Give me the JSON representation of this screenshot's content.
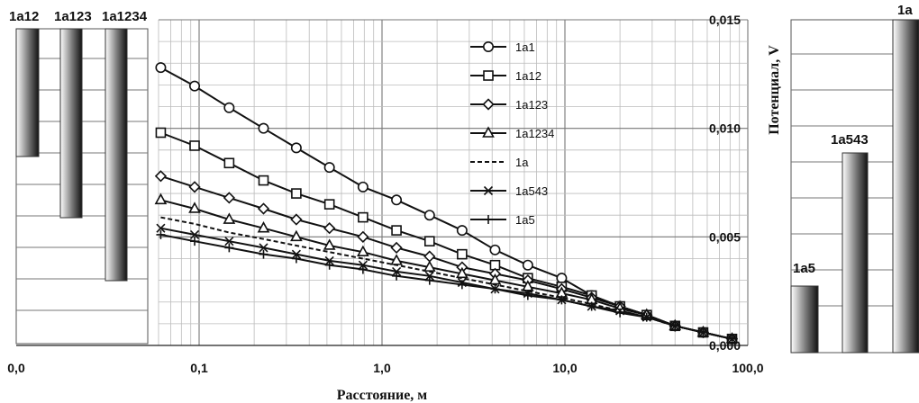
{
  "chart_data": {
    "type": "line",
    "xlabel": "Расстояние, м",
    "ylabel": "Потенциал, V",
    "x_scale": "log",
    "xlim": [
      0.01,
      100
    ],
    "ylim": [
      0,
      0.015
    ],
    "x_tick_labels": [
      "0,0",
      "0,1",
      "1,0",
      "10,0",
      "100,0"
    ],
    "y_tick_labels": [
      "0,000",
      "0,005",
      "0,010",
      "0,015"
    ],
    "grid": true,
    "legend_position": "top-right inside plot",
    "x": [
      0.0617,
      0.0945,
      0.146,
      0.225,
      0.34,
      0.516,
      0.787,
      1.2,
      1.82,
      2.74,
      4.15,
      6.27,
      9.6,
      14.0,
      20.0,
      28.0,
      40.0,
      57.0,
      82.0
    ],
    "series": [
      {
        "name": "1a1",
        "marker": "circle",
        "values": [
          0.0128,
          0.01195,
          0.01095,
          0.01,
          0.0091,
          0.0082,
          0.0073,
          0.0067,
          0.006,
          0.0053,
          0.0044,
          0.0037,
          0.0031,
          0.0023,
          0.0018,
          0.0014,
          0.0009,
          0.0006,
          0.0003
        ]
      },
      {
        "name": "1a12",
        "marker": "square",
        "values": [
          0.0098,
          0.0092,
          0.0084,
          0.0076,
          0.007,
          0.0065,
          0.0059,
          0.0053,
          0.0048,
          0.0042,
          0.0037,
          0.0031,
          0.0027,
          0.0023,
          0.0018,
          0.0014,
          0.0009,
          0.0006,
          0.0003
        ]
      },
      {
        "name": "1a123",
        "marker": "diamond",
        "values": [
          0.0078,
          0.0073,
          0.0068,
          0.0063,
          0.0058,
          0.0054,
          0.005,
          0.0045,
          0.0041,
          0.0036,
          0.0033,
          0.003,
          0.0026,
          0.0022,
          0.0018,
          0.0014,
          0.0009,
          0.0006,
          0.0003
        ]
      },
      {
        "name": "1a1234",
        "marker": "triangle",
        "values": [
          0.0067,
          0.0063,
          0.0058,
          0.0054,
          0.005,
          0.0046,
          0.0043,
          0.0039,
          0.0036,
          0.0033,
          0.003,
          0.0027,
          0.0024,
          0.0021,
          0.0017,
          0.0014,
          0.0009,
          0.0006,
          0.0003
        ]
      },
      {
        "name": "1a",
        "marker": "none",
        "dash": "dashed",
        "values": [
          0.0059,
          0.0056,
          0.0052,
          0.0049,
          0.0046,
          0.0043,
          0.004,
          0.0037,
          0.0034,
          0.0031,
          0.0028,
          0.0025,
          0.0022,
          0.0019,
          0.0016,
          0.0013,
          0.0009,
          0.0006,
          0.0003
        ]
      },
      {
        "name": "1a543",
        "marker": "x",
        "values": [
          0.0054,
          0.0051,
          0.0048,
          0.0045,
          0.0042,
          0.0039,
          0.0037,
          0.0034,
          0.0032,
          0.0029,
          0.0026,
          0.0024,
          0.0021,
          0.0018,
          0.0016,
          0.0013,
          0.0009,
          0.0006,
          0.0003
        ]
      },
      {
        "name": "1a5",
        "marker": "plus",
        "values": [
          0.0051,
          0.0048,
          0.0045,
          0.0042,
          0.004,
          0.0037,
          0.0035,
          0.0032,
          0.003,
          0.0028,
          0.0026,
          0.0023,
          0.0021,
          0.0018,
          0.0015,
          0.0013,
          0.0009,
          0.0006,
          0.0003
        ]
      }
    ],
    "left_diagram": {
      "labels": [
        "1a12",
        "1a123",
        "1a1234"
      ]
    },
    "right_diagram": {
      "bars": [
        {
          "label": "1a5",
          "relative_height": 0.2
        },
        {
          "label": "1a543",
          "relative_height": 0.6
        },
        {
          "label": "1a",
          "relative_height": 1.0
        }
      ]
    }
  }
}
